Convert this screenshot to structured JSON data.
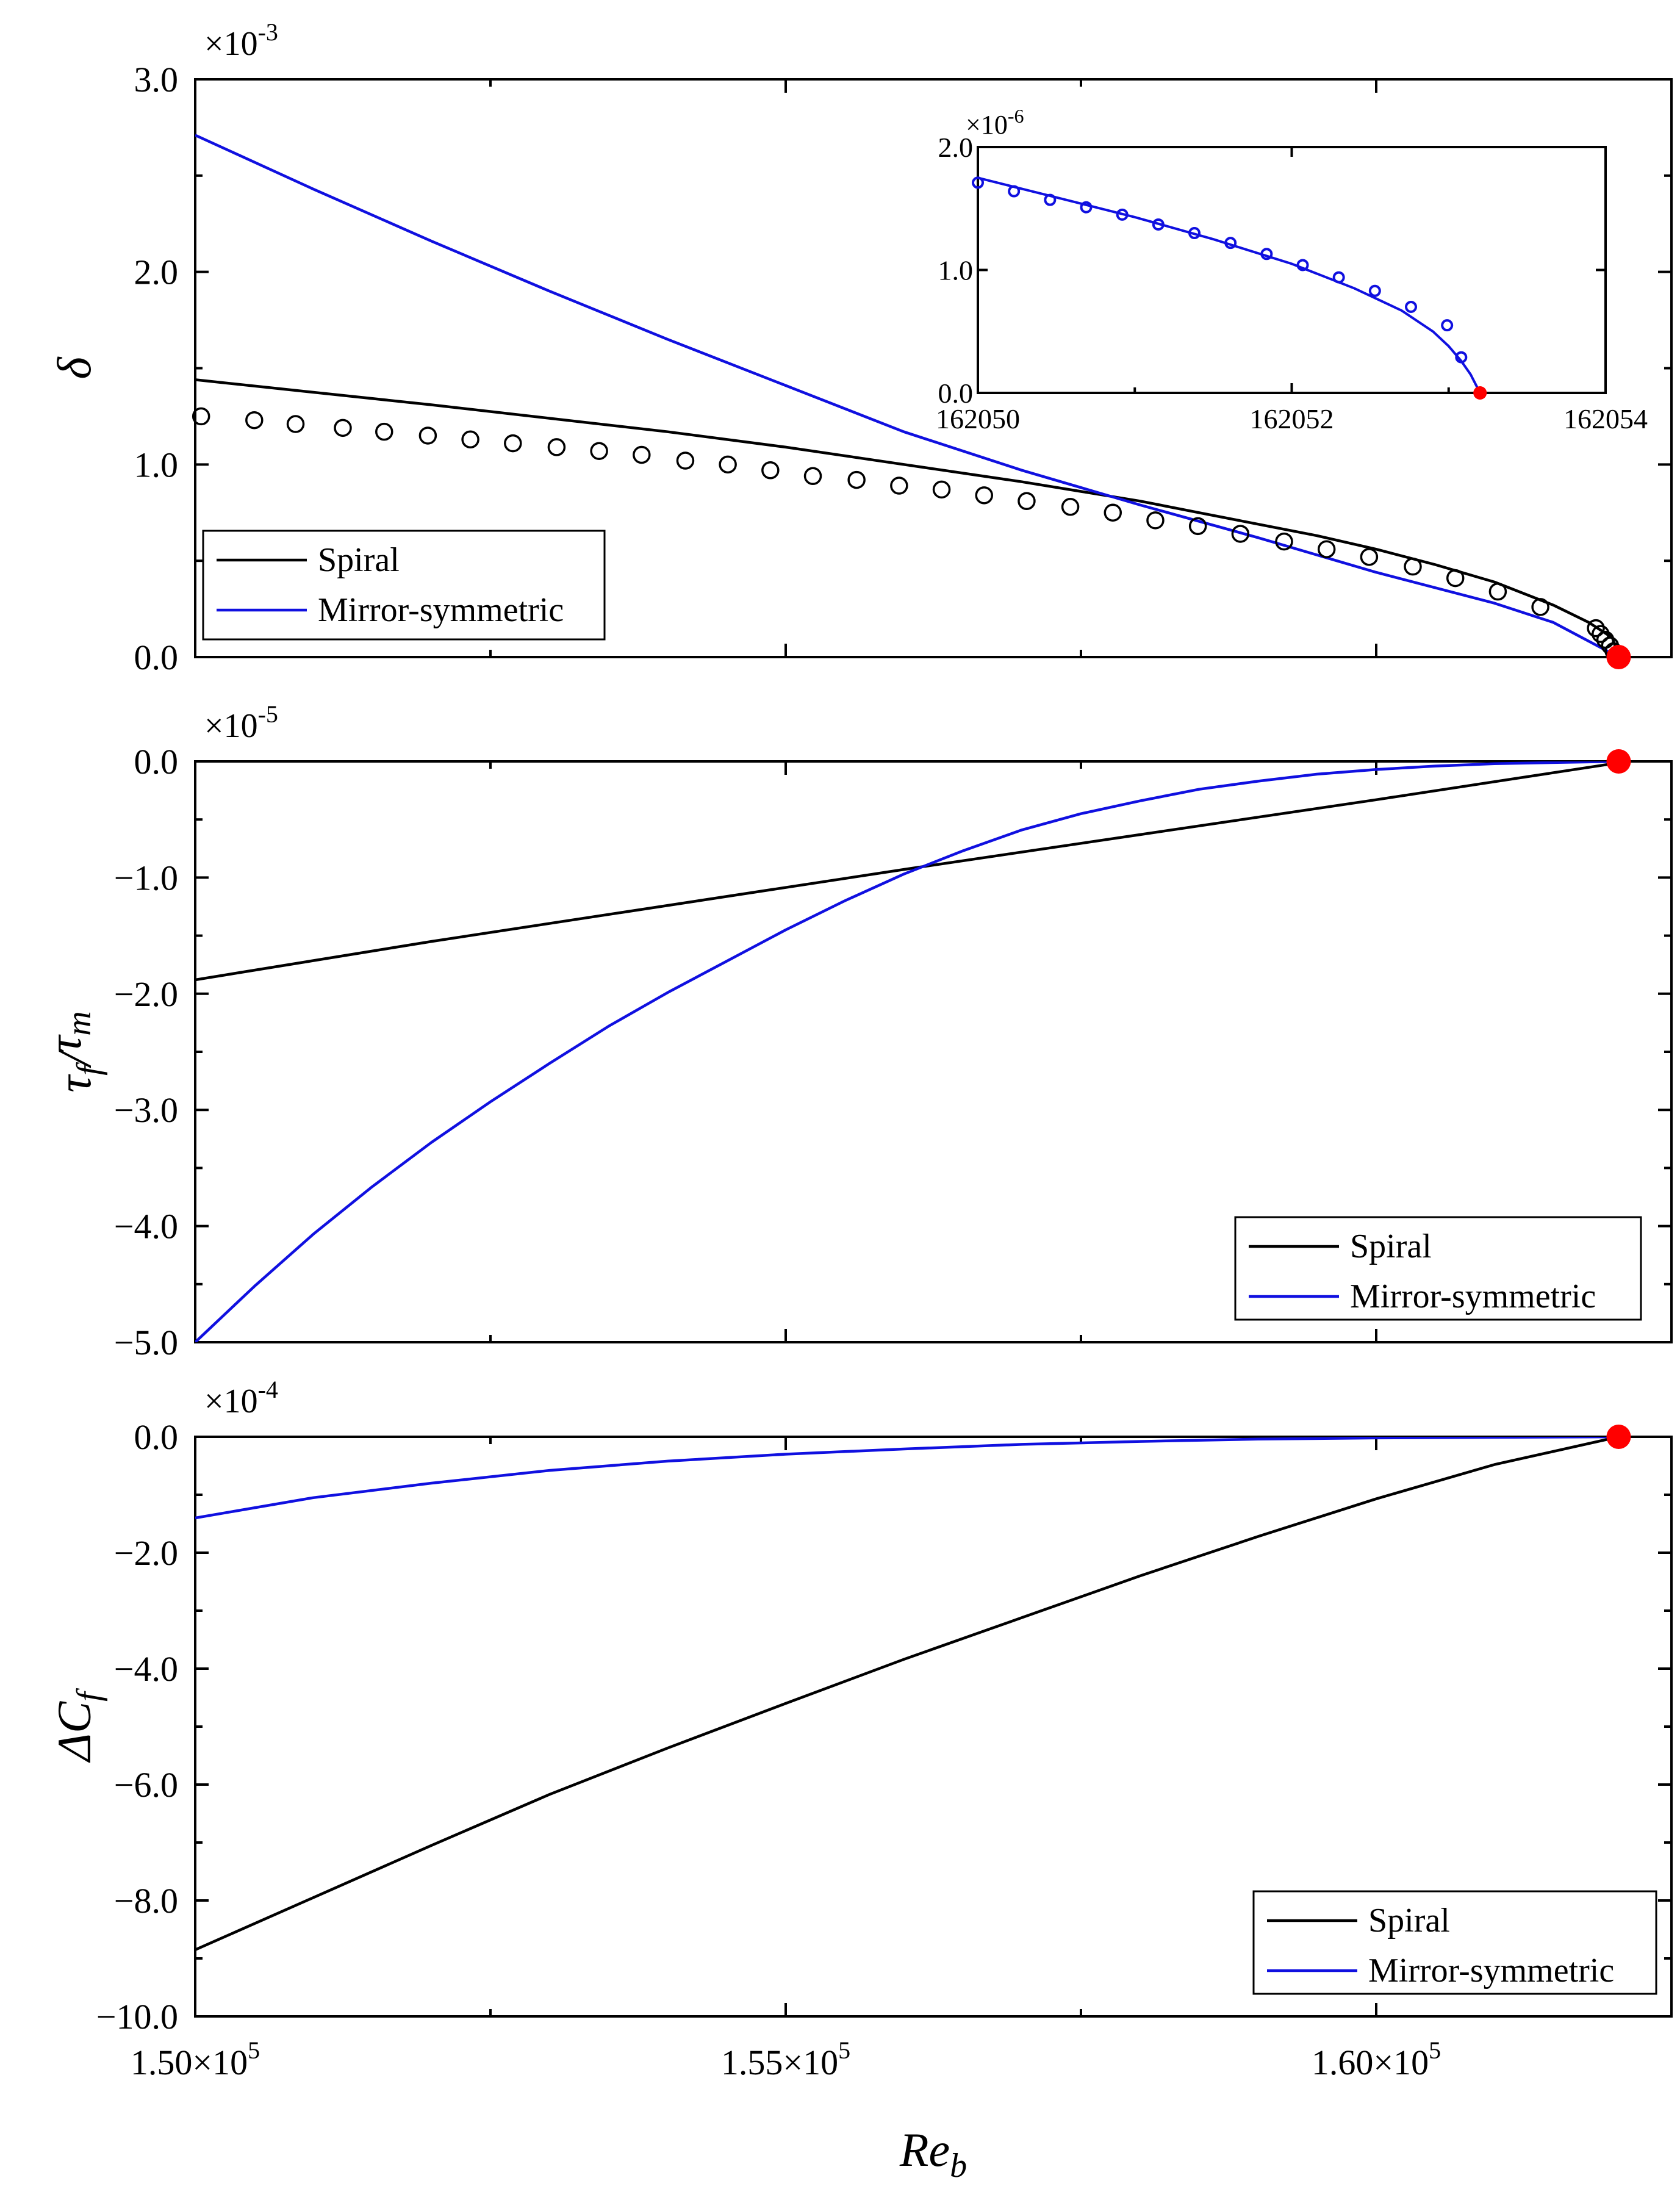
{
  "colors": {
    "spiral": "#000000",
    "mirror": "#1010e0",
    "bifurcation": "#ff0000",
    "axes": "#000000"
  },
  "x_label_main": "Re",
  "x_label_sub": "b",
  "x_tick_labels": [
    {
      "value": 150000,
      "mantissa": "1.50",
      "times": "×10",
      "exp": "5"
    },
    {
      "value": 155000,
      "mantissa": "1.55",
      "times": "×10",
      "exp": "5"
    },
    {
      "value": 160000,
      "mantissa": "1.60",
      "times": "×10",
      "exp": "5"
    }
  ],
  "chart_data": [
    {
      "type": "line",
      "panel": "top",
      "ylabel": "δ",
      "y_multiplier_base": "×10",
      "y_multiplier_exp": "-3",
      "xlim": [
        150000,
        162500
      ],
      "ylim": [
        0,
        3.0
      ],
      "yticks": [
        0.0,
        1.0,
        2.0,
        3.0
      ],
      "ytick_labels": [
        "0.0",
        "1.0",
        "2.0",
        "3.0"
      ],
      "legend": [
        "Spiral",
        "Mirror-symmetric"
      ],
      "legend_position": "bottom-left",
      "series": [
        {
          "name": "Spiral",
          "style": "line",
          "color": "#000000",
          "x": [
            150000,
            152000,
            154000,
            155000,
            156000,
            157000,
            157500,
            158000,
            158500,
            159000,
            159500,
            160000,
            160500,
            161000,
            161500,
            161800,
            162000,
            162053
          ],
          "y": [
            1.44,
            1.31,
            1.17,
            1.09,
            1.0,
            0.91,
            0.86,
            0.81,
            0.75,
            0.69,
            0.63,
            0.56,
            0.48,
            0.39,
            0.27,
            0.18,
            0.1,
            0.0
          ]
        },
        {
          "name": "Mirror-symmetric",
          "style": "line",
          "color": "#1010e0",
          "x": [
            150000,
            151000,
            152000,
            153000,
            154000,
            155000,
            156000,
            157000,
            158000,
            159000,
            160000,
            161000,
            161500,
            162053
          ],
          "y": [
            2.71,
            2.43,
            2.16,
            1.9,
            1.65,
            1.41,
            1.17,
            0.97,
            0.79,
            0.62,
            0.44,
            0.28,
            0.18,
            0.0
          ]
        },
        {
          "name": "Spiral (DNS markers)",
          "style": "markers",
          "color": "#000000",
          "x": [
            150050,
            150500,
            150850,
            151250,
            151600,
            151970,
            152330,
            152690,
            153060,
            153420,
            153780,
            154150,
            154510,
            154870,
            155230,
            155600,
            155960,
            156320,
            156680,
            157040,
            157410,
            157770,
            158130,
            158490,
            158850,
            159220,
            159580,
            159940,
            160310,
            160670,
            161030,
            161390,
            161860,
            161900,
            161940,
            161980,
            162010
          ],
          "y": [
            1.25,
            1.23,
            1.21,
            1.19,
            1.17,
            1.15,
            1.13,
            1.11,
            1.09,
            1.07,
            1.05,
            1.02,
            1.0,
            0.97,
            0.94,
            0.92,
            0.89,
            0.87,
            0.84,
            0.81,
            0.78,
            0.75,
            0.71,
            0.68,
            0.64,
            0.6,
            0.56,
            0.52,
            0.47,
            0.41,
            0.34,
            0.26,
            0.15,
            0.12,
            0.09,
            0.06,
            0.03
          ]
        },
        {
          "name": "Bifurcation point",
          "style": "point",
          "color": "#ff0000",
          "x": [
            162053
          ],
          "y": [
            0.0
          ]
        }
      ],
      "inset": {
        "xlim": [
          162050,
          162054
        ],
        "ylim": [
          0,
          2.0
        ],
        "xticks": [
          162050,
          162052,
          162054
        ],
        "xtick_labels": [
          "162050",
          "162052",
          "162054"
        ],
        "yticks": [
          0.0,
          1.0,
          2.0
        ],
        "ytick_labels": [
          "0.0",
          "1.0",
          "2.0"
        ],
        "y_multiplier_base": "×10",
        "y_multiplier_exp": "-6",
        "series": [
          {
            "name": "Mirror-symmetric",
            "style": "line",
            "color": "#1010e0",
            "x": [
              162050.0,
              162050.5,
              162051.0,
              162051.5,
              162052.0,
              162052.4,
              162052.7,
              162052.9,
              162053.0,
              162053.08,
              162053.14,
              162053.2
            ],
            "y": [
              1.75,
              1.59,
              1.43,
              1.25,
              1.05,
              0.85,
              0.67,
              0.5,
              0.38,
              0.26,
              0.15,
              0.0
            ]
          },
          {
            "name": "Mirror-symmetric (markers)",
            "style": "markers",
            "color": "#1010e0",
            "x": [
              162050.0,
              162050.23,
              162050.46,
              162050.69,
              162050.92,
              162051.15,
              162051.38,
              162051.61,
              162051.84,
              162052.07,
              162052.3,
              162052.53,
              162052.76,
              162052.99,
              162053.08
            ],
            "y": [
              1.71,
              1.64,
              1.57,
              1.51,
              1.45,
              1.37,
              1.3,
              1.22,
              1.13,
              1.04,
              0.94,
              0.83,
              0.7,
              0.55,
              0.29
            ]
          },
          {
            "name": "Bifurcation point",
            "style": "point",
            "color": "#ff0000",
            "x": [
              162053.2
            ],
            "y": [
              0.0
            ]
          }
        ]
      }
    },
    {
      "type": "line",
      "panel": "middle",
      "ylabel": "τf/τm",
      "ylabel_parts": [
        "τ",
        "f",
        "/",
        "τ",
        "m"
      ],
      "y_multiplier_base": "×10",
      "y_multiplier_exp": "-5",
      "xlim": [
        150000,
        162500
      ],
      "ylim": [
        -5.0,
        0.0
      ],
      "yticks": [
        0.0,
        -1.0,
        -2.0,
        -3.0,
        -4.0,
        -5.0
      ],
      "ytick_labels": [
        "0.0",
        "−1.0",
        "−2.0",
        "−3.0",
        "−4.0",
        "−5.0"
      ],
      "legend": [
        "Spiral",
        "Mirror-symmetric"
      ],
      "legend_position": "bottom-right",
      "series": [
        {
          "name": "Spiral",
          "style": "line",
          "color": "#000000",
          "x": [
            150000,
            152000,
            154000,
            156000,
            158000,
            160000,
            162000,
            162053
          ],
          "y": [
            -1.88,
            -1.55,
            -1.24,
            -0.93,
            -0.63,
            -0.33,
            -0.02,
            0.0
          ]
        },
        {
          "name": "Mirror-symmetric",
          "style": "line",
          "color": "#1010e0",
          "x": [
            150000,
            150500,
            151000,
            151500,
            152000,
            152500,
            153000,
            153500,
            154000,
            154500,
            155000,
            155500,
            156000,
            156500,
            157000,
            157500,
            158000,
            158500,
            159000,
            159500,
            160000,
            160500,
            161000,
            161500,
            162053
          ],
          "y": [
            -5.0,
            -4.52,
            -4.07,
            -3.66,
            -3.28,
            -2.93,
            -2.6,
            -2.28,
            -1.99,
            -1.72,
            -1.45,
            -1.2,
            -0.97,
            -0.77,
            -0.59,
            -0.45,
            -0.34,
            -0.24,
            -0.17,
            -0.11,
            -0.07,
            -0.04,
            -0.02,
            -0.01,
            0.0
          ]
        },
        {
          "name": "Bifurcation point",
          "style": "point",
          "color": "#ff0000",
          "x": [
            162053
          ],
          "y": [
            0.0
          ]
        }
      ]
    },
    {
      "type": "line",
      "panel": "bottom",
      "ylabel": "ΔCf",
      "ylabel_parts": [
        "ΔC",
        "f"
      ],
      "y_multiplier_base": "×10",
      "y_multiplier_exp": "-4",
      "xlim": [
        150000,
        162500
      ],
      "ylim": [
        -10.0,
        0.0
      ],
      "yticks": [
        0.0,
        -2.0,
        -4.0,
        -6.0,
        -8.0,
        -10.0
      ],
      "ytick_labels": [
        "0.0",
        "−2.0",
        "−4.0",
        "−6.0",
        "−8.0",
        "−10.0"
      ],
      "legend": [
        "Spiral",
        "Mirror-symmetric"
      ],
      "legend_position": "bottom-right",
      "series": [
        {
          "name": "Spiral",
          "style": "line",
          "color": "#000000",
          "x": [
            150000,
            151000,
            152000,
            153000,
            154000,
            155000,
            156000,
            157000,
            158000,
            159000,
            160000,
            161000,
            162053
          ],
          "y": [
            -8.85,
            -7.95,
            -7.05,
            -6.17,
            -5.37,
            -4.6,
            -3.84,
            -3.12,
            -2.4,
            -1.72,
            -1.07,
            -0.48,
            0.0
          ]
        },
        {
          "name": "Mirror-symmetric",
          "style": "line",
          "color": "#1010e0",
          "x": [
            150000,
            151000,
            152000,
            153000,
            154000,
            155000,
            156000,
            157000,
            158000,
            159000,
            160000,
            161000,
            162053
          ],
          "y": [
            -1.4,
            -1.05,
            -0.8,
            -0.58,
            -0.42,
            -0.3,
            -0.21,
            -0.13,
            -0.08,
            -0.04,
            -0.02,
            -0.01,
            0.0
          ]
        },
        {
          "name": "Bifurcation point",
          "style": "point",
          "color": "#ff0000",
          "x": [
            162053
          ],
          "y": [
            0.0
          ]
        }
      ]
    }
  ]
}
